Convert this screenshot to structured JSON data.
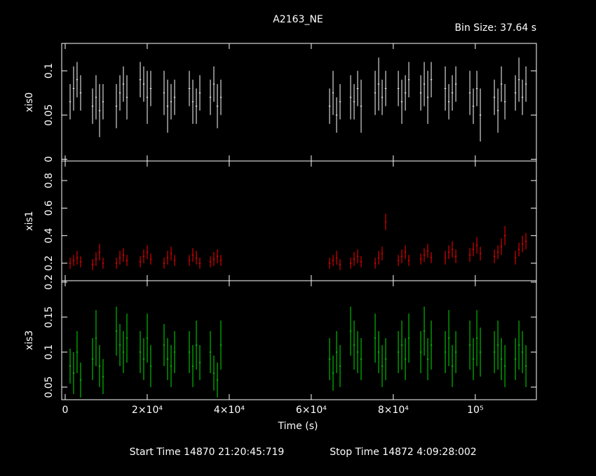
{
  "chart_data": {
    "type": "errorbar",
    "title": "A2163_NE",
    "subtitle": "Bin Size: 37.64 s",
    "x_label": "Time (s)",
    "footer": [
      "Start Time 14870 21:20:45:719",
      "Stop Time 14872  4:09:28:002"
    ],
    "xlim": [
      -850,
      114900
    ],
    "xticks": [
      0,
      {
        "value": 20000,
        "label": "2×10⁴"
      },
      {
        "value": 40000,
        "label": "4×10⁴"
      },
      {
        "value": 60000,
        "label": "6×10⁴"
      },
      {
        "value": 80000,
        "label": "8×10⁴"
      },
      {
        "value": 100000,
        "label": "10⁵"
      }
    ],
    "x": [
      1200,
      2050,
      2900,
      3760,
      6670,
      7520,
      8380,
      9230,
      12480,
      13340,
      14190,
      15050,
      18300,
      19150,
      20010,
      20860,
      24110,
      24970,
      25820,
      26680,
      30270,
      31120,
      31980,
      32830,
      35400,
      36250,
      37110,
      37960,
      64470,
      65320,
      66180,
      67030,
      69600,
      70450,
      71310,
      72160,
      75580,
      76440,
      77290,
      78150,
      81230,
      82080,
      82940,
      83790,
      86700,
      87550,
      88410,
      89260,
      92680,
      93540,
      94390,
      95250,
      98670,
      99520,
      100380,
      101230,
      104650,
      105510,
      106360,
      107220,
      109780,
      110640,
      111490,
      112350
    ],
    "panels": [
      {
        "label": "xis0",
        "color": "#ffffff",
        "ylim": [
          -0.002,
          0.131
        ],
        "yticks": [
          0,
          0.05,
          0.1
        ],
        "values": [
          0.065,
          0.08,
          0.09,
          0.075,
          0.06,
          0.07,
          0.055,
          0.065,
          0.06,
          0.075,
          0.085,
          0.07,
          0.09,
          0.085,
          0.07,
          0.08,
          0.075,
          0.06,
          0.065,
          0.07,
          0.08,
          0.065,
          0.06,
          0.075,
          0.07,
          0.085,
          0.06,
          0.07,
          0.06,
          0.075,
          0.05,
          0.065,
          0.07,
          0.065,
          0.08,
          0.06,
          0.075,
          0.085,
          0.07,
          0.08,
          0.08,
          0.065,
          0.075,
          0.09,
          0.075,
          0.085,
          0.07,
          0.09,
          0.08,
          0.065,
          0.075,
          0.085,
          0.075,
          0.06,
          0.08,
          0.05,
          0.07,
          0.055,
          0.085,
          0.065,
          0.075,
          0.09,
          0.07,
          0.085
        ],
        "errors": [
          0.02,
          0.025,
          0.02,
          0.02,
          0.02,
          0.025,
          0.03,
          0.02,
          0.025,
          0.02,
          0.02,
          0.025,
          0.02,
          0.02,
          0.03,
          0.02,
          0.025,
          0.03,
          0.02,
          0.02,
          0.02,
          0.025,
          0.02,
          0.02,
          0.02,
          0.02,
          0.025,
          0.02,
          0.02,
          0.025,
          0.02,
          0.02,
          0.025,
          0.02,
          0.02,
          0.03,
          0.025,
          0.03,
          0.02,
          0.02,
          0.02,
          0.025,
          0.02,
          0.02,
          0.02,
          0.025,
          0.03,
          0.02,
          0.025,
          0.02,
          0.02,
          0.02,
          0.025,
          0.02,
          0.02,
          0.03,
          0.02,
          0.025,
          0.02,
          0.02,
          0.02,
          0.025,
          0.02,
          0.02
        ]
      },
      {
        "label": "xis1",
        "color": "#ff0000",
        "ylim": [
          0.073,
          0.942
        ],
        "yticks": [
          0.2,
          0.4,
          0.6,
          0.8
        ],
        "values": [
          0.2,
          0.22,
          0.24,
          0.21,
          0.19,
          0.23,
          0.28,
          0.2,
          0.2,
          0.24,
          0.26,
          0.22,
          0.21,
          0.25,
          0.28,
          0.23,
          0.2,
          0.24,
          0.27,
          0.22,
          0.22,
          0.26,
          0.24,
          0.2,
          0.21,
          0.23,
          0.25,
          0.22,
          0.2,
          0.22,
          0.24,
          0.19,
          0.2,
          0.23,
          0.25,
          0.21,
          0.2,
          0.24,
          0.27,
          0.5,
          0.22,
          0.25,
          0.28,
          0.22,
          0.23,
          0.26,
          0.29,
          0.24,
          0.24,
          0.28,
          0.3,
          0.25,
          0.26,
          0.3,
          0.33,
          0.27,
          0.25,
          0.28,
          0.32,
          0.4,
          0.24,
          0.3,
          0.34,
          0.36
        ],
        "errors": [
          0.04,
          0.04,
          0.05,
          0.04,
          0.04,
          0.05,
          0.06,
          0.04,
          0.04,
          0.05,
          0.05,
          0.04,
          0.04,
          0.05,
          0.05,
          0.04,
          0.04,
          0.05,
          0.05,
          0.04,
          0.04,
          0.05,
          0.05,
          0.04,
          0.04,
          0.05,
          0.05,
          0.04,
          0.04,
          0.04,
          0.05,
          0.04,
          0.04,
          0.05,
          0.05,
          0.04,
          0.04,
          0.05,
          0.05,
          0.06,
          0.04,
          0.05,
          0.05,
          0.04,
          0.04,
          0.05,
          0.05,
          0.04,
          0.05,
          0.05,
          0.06,
          0.05,
          0.05,
          0.05,
          0.06,
          0.05,
          0.05,
          0.05,
          0.06,
          0.07,
          0.05,
          0.05,
          0.06,
          0.06
        ]
      },
      {
        "label": "xis3",
        "color": "#00e000",
        "ylim": [
          0.032,
          0.202
        ],
        "yticks": [
          0.05,
          0.1,
          0.15,
          0.2
        ],
        "values": [
          0.08,
          0.07,
          0.1,
          0.06,
          0.09,
          0.12,
          0.08,
          0.065,
          0.13,
          0.11,
          0.1,
          0.12,
          0.1,
          0.09,
          0.12,
          0.08,
          0.11,
          0.09,
          0.08,
          0.1,
          0.1,
          0.08,
          0.11,
          0.085,
          0.1,
          0.07,
          0.06,
          0.11,
          0.09,
          0.07,
          0.1,
          0.08,
          0.13,
          0.11,
          0.1,
          0.09,
          0.12,
          0.1,
          0.08,
          0.09,
          0.1,
          0.11,
          0.09,
          0.12,
          0.1,
          0.13,
          0.09,
          0.11,
          0.1,
          0.12,
          0.08,
          0.1,
          0.11,
          0.09,
          0.12,
          0.1,
          0.1,
          0.11,
          0.09,
          0.08,
          0.09,
          0.11,
          0.1,
          0.08
        ],
        "errors": [
          0.025,
          0.03,
          0.03,
          0.025,
          0.03,
          0.04,
          0.03,
          0.025,
          0.035,
          0.03,
          0.03,
          0.035,
          0.03,
          0.03,
          0.035,
          0.03,
          0.03,
          0.03,
          0.03,
          0.03,
          0.03,
          0.03,
          0.035,
          0.025,
          0.03,
          0.025,
          0.025,
          0.035,
          0.03,
          0.025,
          0.03,
          0.03,
          0.035,
          0.035,
          0.03,
          0.03,
          0.035,
          0.03,
          0.03,
          0.03,
          0.03,
          0.035,
          0.03,
          0.035,
          0.03,
          0.035,
          0.03,
          0.035,
          0.03,
          0.04,
          0.03,
          0.03,
          0.035,
          0.03,
          0.04,
          0.035,
          0.03,
          0.035,
          0.03,
          0.03,
          0.03,
          0.035,
          0.03,
          0.03
        ]
      }
    ]
  }
}
